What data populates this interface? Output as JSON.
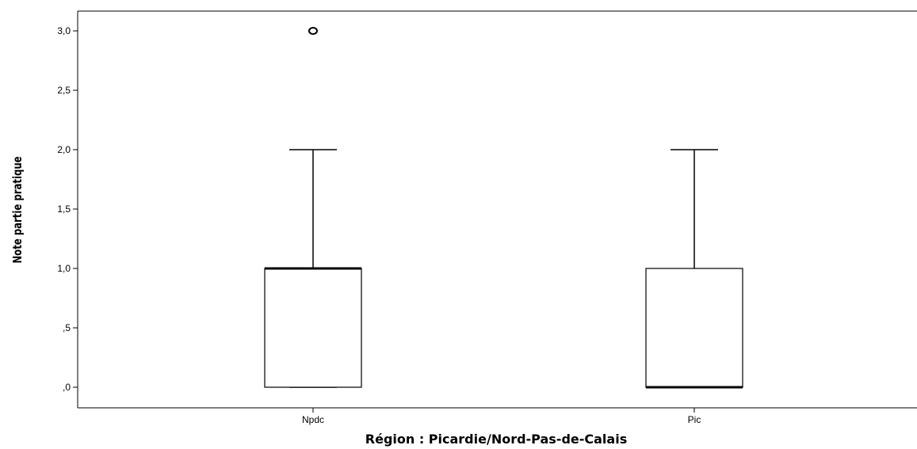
{
  "chart_data": {
    "type": "boxplot",
    "xlabel": "Région : Picardie/Nord-Pas-de-Calais",
    "ylabel": "Note partie pratique",
    "ylim": [
      -0.17,
      3.17
    ],
    "yticks": [
      {
        "value": 0.0,
        "label": ",0"
      },
      {
        "value": 0.5,
        "label": ",5"
      },
      {
        "value": 1.0,
        "label": "1,0"
      },
      {
        "value": 1.5,
        "label": "1,5"
      },
      {
        "value": 2.0,
        "label": "2,0"
      },
      {
        "value": 2.5,
        "label": "2,5"
      },
      {
        "value": 3.0,
        "label": "3,0"
      }
    ],
    "grid": false,
    "colors": {
      "box_fill": "#ffffff",
      "stroke": "#000000"
    },
    "categories": [
      "Npdc",
      "Pic"
    ],
    "boxes": [
      {
        "category": "Npdc",
        "whisker_low": 0,
        "q1": 0,
        "median": 1,
        "q3": 1,
        "whisker_high": 2,
        "outliers": [
          3
        ]
      },
      {
        "category": "Pic",
        "whisker_low": 0,
        "q1": 0,
        "median": 0,
        "q3": 1,
        "whisker_high": 2,
        "outliers": []
      }
    ]
  }
}
